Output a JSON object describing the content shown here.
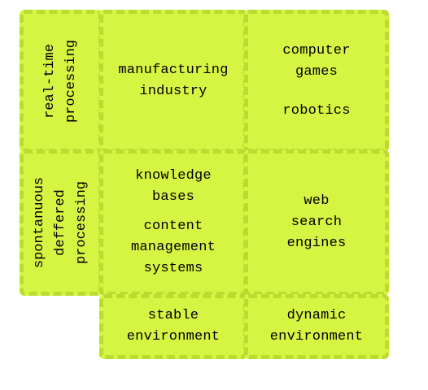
{
  "row_labels": {
    "realtime": "real-time\nprocessing",
    "spontaneous": "spontanuous\ndeffered\nprocessing"
  },
  "col_labels": {
    "stable": "stable\nenvironment",
    "dynamic": "dynamic\nenvironment"
  },
  "cells": {
    "realtime_stable": [
      "manufacturing\nindustry"
    ],
    "realtime_dynamic": [
      "computer\ngames",
      "robotics"
    ],
    "spontaneous_stable": [
      "knowledge\nbases",
      "content\nmanagement\nsystems"
    ],
    "spontaneous_dynamic": [
      "web\nsearch\nengines"
    ]
  },
  "colors": {
    "fill": "#d6f542",
    "border": "#b9dc2e"
  }
}
